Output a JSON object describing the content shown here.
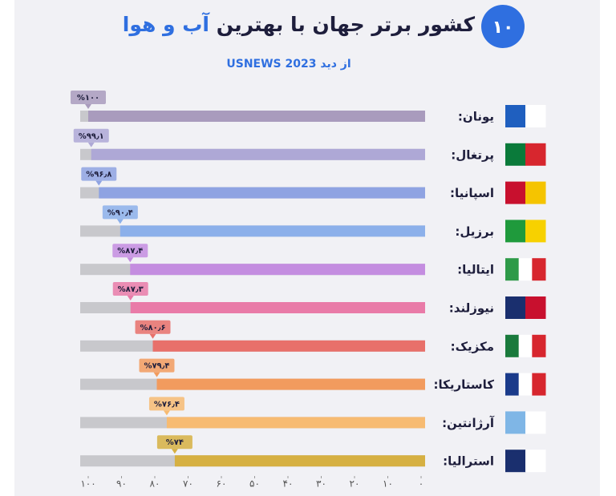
{
  "title_number": "۱۰",
  "chart_data": {
    "type": "hbar",
    "title": "کشور برتر جهان با بهترین",
    "title_highlight": "آب و هوا",
    "subtitle": "از دید USNEWS 2023",
    "categories": [
      "یونان:",
      "پرتغال:",
      "اسپانیا:",
      "برزیل:",
      "ایتالیا:",
      "نیوزلند:",
      "مکزیک:",
      "کاستاریکا:",
      "آرژانتین:",
      "استرالیا:"
    ],
    "values": [
      100,
      99.1,
      96.8,
      90.4,
      87.4,
      87.3,
      80.6,
      79.4,
      76.4,
      74
    ],
    "value_labels": [
      "%۱۰۰",
      "%۹۹٫۱",
      "%۹۶٫۸",
      "%۹۰٫۴",
      "%۸۷٫۴",
      "%۸۷٫۳",
      "%۸۰٫۶",
      "%۷۹٫۴",
      "%۷۶٫۴",
      "%۷۴"
    ],
    "colors": [
      "#a99bbd",
      "#aea8d6",
      "#8fa3e2",
      "#8cb0ea",
      "#c48de0",
      "#e97ba8",
      "#e8706a",
      "#f29b5e",
      "#f7bb72",
      "#d6b042"
    ],
    "xlim": [
      100,
      0
    ],
    "xticks": [
      {
        "value": 100,
        "label": "۱۰۰"
      },
      {
        "value": 90,
        "label": "۹۰"
      },
      {
        "value": 80,
        "label": "۸۰"
      },
      {
        "value": 70,
        "label": "۷۰"
      },
      {
        "value": 60,
        "label": "۶۰"
      },
      {
        "value": 50,
        "label": "۵۰"
      },
      {
        "value": 40,
        "label": "۴۰"
      },
      {
        "value": 30,
        "label": "۳۰"
      },
      {
        "value": 20,
        "label": "۲۰"
      },
      {
        "value": 10,
        "label": "۱۰"
      },
      {
        "value": 0,
        "label": "۰"
      }
    ]
  }
}
